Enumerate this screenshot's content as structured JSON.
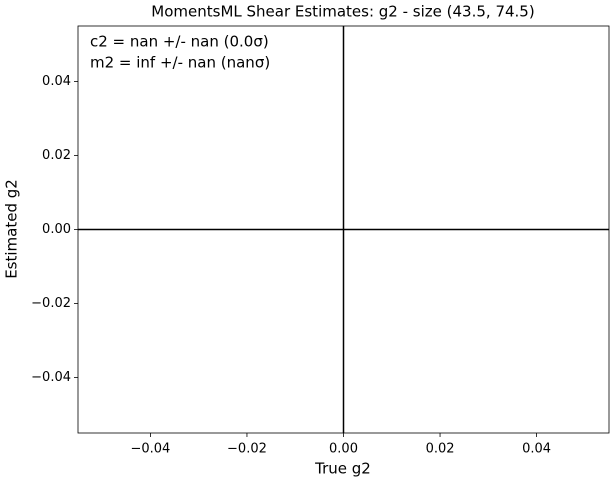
{
  "chart_data": {
    "type": "scatter",
    "title": "MomentsML Shear Estimates: g2  - size (43.5, 74.5)",
    "x_label": "True g2",
    "y_label": "Estimated g2",
    "annotations": [
      "c2 = nan +/- nan (0.0σ)",
      "m2 = inf +/- nan (nanσ)"
    ],
    "x": [],
    "values": [],
    "hlines": [
      0
    ],
    "vlines": [
      0
    ],
    "xlim": [
      -0.055,
      0.055
    ],
    "ylim": [
      -0.055,
      0.055
    ],
    "xticks": [
      {
        "value": -0.04,
        "label": "−0.04"
      },
      {
        "value": -0.02,
        "label": "−0.02"
      },
      {
        "value": 0,
        "label": "0.00"
      },
      0.02,
      0.04
    ],
    "yticks": [
      {
        "value": -0.04,
        "label": "−0.04"
      },
      {
        "value": -0.02,
        "label": "−0.02"
      },
      {
        "value": 0,
        "label": "0.00"
      },
      0.02,
      0.04
    ]
  }
}
